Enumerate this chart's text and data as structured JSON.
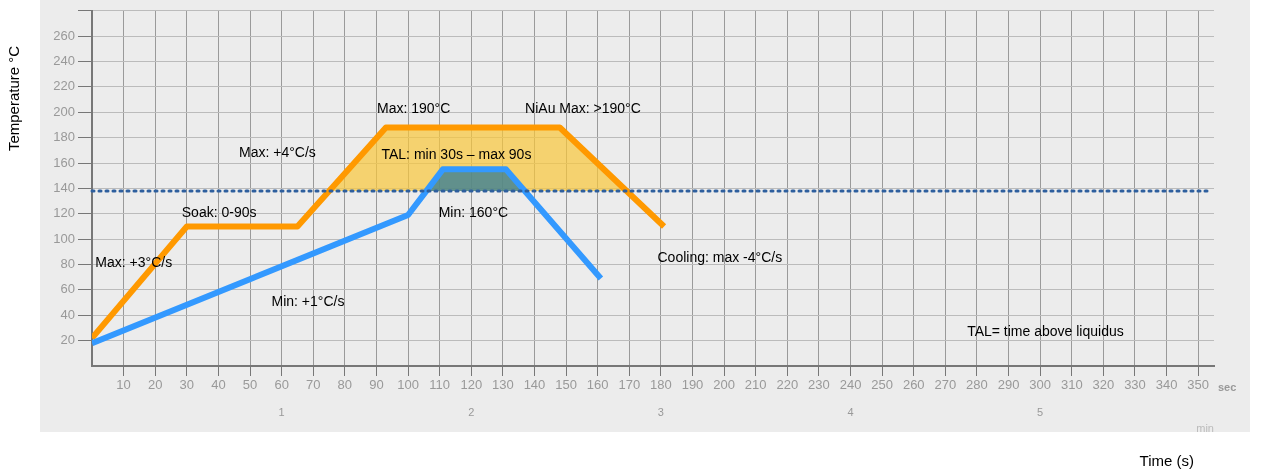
{
  "chart_data": {
    "type": "line",
    "xlabel": "Time (s)",
    "ylabel": "Temperature °C",
    "xlim": [
      0,
      355
    ],
    "xticks": [
      10,
      20,
      30,
      40,
      50,
      60,
      70,
      80,
      90,
      100,
      110,
      120,
      130,
      140,
      150,
      160,
      170,
      180,
      190,
      200,
      210,
      220,
      230,
      240,
      250,
      260,
      270,
      280,
      290,
      300,
      310,
      320,
      330,
      340,
      350
    ],
    "x2lim": [
      0,
      5.917
    ],
    "x2ticks": [
      1,
      2,
      3,
      4,
      5
    ],
    "x2label": "min",
    "ylim": [
      0,
      280
    ],
    "yticks": [
      20,
      40,
      60,
      80,
      100,
      120,
      140,
      160,
      180,
      200,
      220,
      240,
      260,
      {
        "value": 280,
        "label": null
      }
    ],
    "grid": true,
    "legend": false,
    "marker": "none",
    "line_style": "solid",
    "series": [
      {
        "color": "#ff9900",
        "x": [
          0,
          30,
          65,
          93,
          148,
          181
        ],
        "values": [
          22,
          110,
          110,
          188,
          188,
          110
        ]
      },
      {
        "color": "#3399ff",
        "x": [
          0,
          100,
          111,
          131,
          161
        ],
        "values": [
          18,
          119,
          155,
          155,
          69
        ]
      }
    ],
    "ref_lines": [
      {
        "axis": "y",
        "value": 138,
        "color": "#2e5f9e",
        "line_style": "dotted"
      }
    ],
    "annotations": [
      "Max: +3°C/s",
      "Soak: 0-90s",
      "Max: +4°C/s",
      "Max: 190°C",
      "NiAu Max: >190°C",
      "TAL: min 30s – max 90s",
      "Min: 160°C",
      "Min: +1°C/s",
      "Cooling: max -4°C/s",
      "TAL= time above liquidus",
      "sec"
    ]
  }
}
